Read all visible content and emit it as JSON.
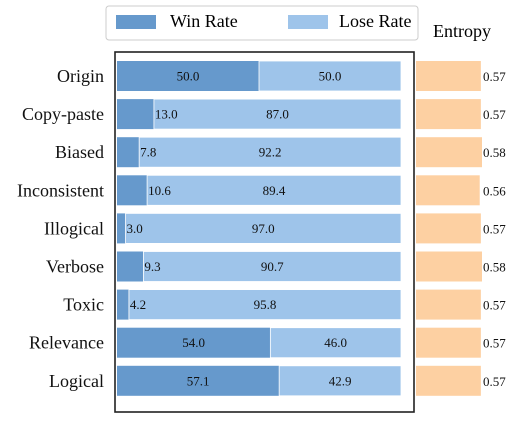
{
  "chart_data": {
    "type": "bar",
    "orientation": "horizontal",
    "stacked": true,
    "categories": [
      "Origin",
      "Copy-paste",
      "Biased",
      "Inconsistent",
      "Illogical",
      "Verbose",
      "Toxic",
      "Relevance",
      "Logical"
    ],
    "series": [
      {
        "name": "Win Rate",
        "values": [
          50.0,
          13.0,
          7.8,
          10.6,
          3.0,
          9.3,
          4.2,
          54.0,
          57.1
        ]
      },
      {
        "name": "Lose Rate",
        "values": [
          50.0,
          87.0,
          92.2,
          89.4,
          97.0,
          90.7,
          95.8,
          46.0,
          42.9
        ]
      }
    ],
    "value_labels": {
      "Win Rate": [
        "50.0",
        "13.0",
        "7.8",
        "10.6",
        "3.0",
        "9.3",
        "4.2",
        "54.0",
        "57.1"
      ],
      "Lose Rate": [
        "50.0",
        "87.0",
        "92.2",
        "89.4",
        "97.0",
        "90.7",
        "95.8",
        "46.0",
        "42.9"
      ]
    },
    "xlim": [
      0,
      100
    ],
    "legend_position": "top",
    "side_panel": {
      "title": "Entropy",
      "values": [
        0.57,
        0.57,
        0.58,
        0.56,
        0.57,
        0.58,
        0.57,
        0.57,
        0.57
      ],
      "labels": [
        "0.57",
        "0.57",
        "0.58",
        "0.56",
        "0.57",
        "0.58",
        "0.57",
        "0.57",
        "0.57"
      ],
      "color": "#fdd0a2"
    },
    "colors": {
      "Win Rate": "#6699cc",
      "Lose Rate": "#9ec4ea"
    }
  }
}
